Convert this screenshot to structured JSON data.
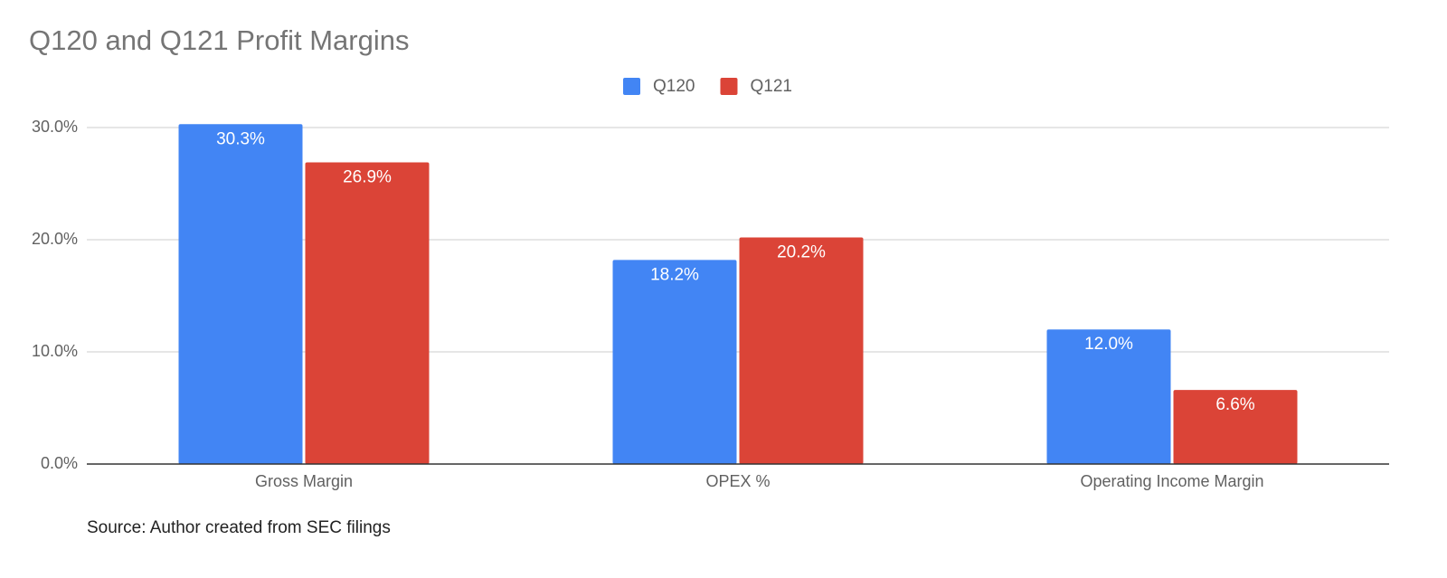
{
  "chart_data": {
    "type": "bar",
    "title": "Q120 and Q121 Profit Margins",
    "categories": [
      "Gross Margin",
      "OPEX %",
      "Operating Income Margin"
    ],
    "series": [
      {
        "name": "Q120",
        "color": "#4285f4",
        "values": [
          30.3,
          18.2,
          12.0
        ],
        "value_labels": [
          "30.3%",
          "18.2%",
          "12.0%"
        ]
      },
      {
        "name": "Q121",
        "color": "#db4437",
        "values": [
          26.9,
          20.2,
          6.6
        ],
        "value_labels": [
          "26.9%",
          "20.2%",
          "6.6%"
        ]
      }
    ],
    "ylim": [
      0,
      32
    ],
    "yticks": [
      {
        "value": 0,
        "label": "0.0%"
      },
      {
        "value": 10,
        "label": "10.0%"
      },
      {
        "value": 20,
        "label": "20.0%"
      },
      {
        "value": 30,
        "label": "30.0%"
      }
    ],
    "grid": true,
    "legend": "top",
    "source": "Source: Author created from SEC filings"
  }
}
